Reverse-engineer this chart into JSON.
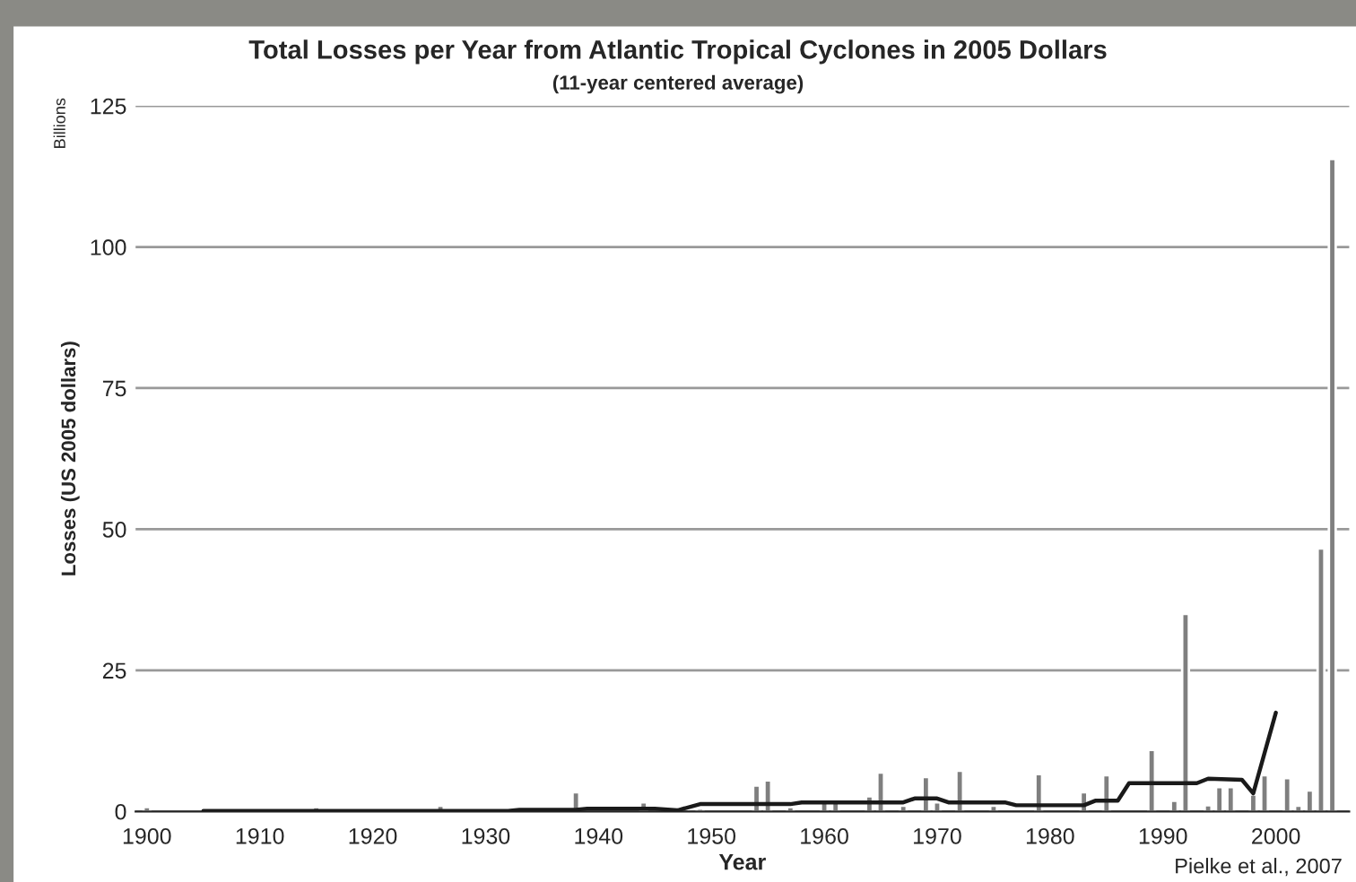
{
  "chart_data": {
    "type": "bar",
    "title": "Total Losses per Year from Atlantic Tropical Cyclones in 2005 Dollars",
    "subtitle": "(11-year centered average)",
    "xlabel": "Year",
    "ylabel": "Losses (US 2005 dollars)",
    "annotations": [
      "Billions",
      "Pielke et al., 2007"
    ],
    "series": [
      {
        "color": "#7f7f7f",
        "x": [
          1900,
          1915,
          1919,
          1926,
          1928,
          1938,
          1944,
          1949,
          1954,
          1955,
          1957,
          1960,
          1961,
          1964,
          1965,
          1967,
          1969,
          1970,
          1972,
          1975,
          1979,
          1983,
          1985,
          1989,
          1991,
          1992,
          1994,
          1995,
          1996,
          1998,
          1999,
          2001,
          2002,
          2003,
          2004,
          2005
        ],
        "values": [
          0.8,
          0.8,
          0.3,
          1.0,
          0.3,
          3.4,
          1.6,
          0.5,
          4.6,
          5.5,
          0.8,
          1.9,
          1.9,
          2.7,
          6.9,
          1.0,
          6.1,
          1.6,
          7.2,
          1.0,
          6.6,
          3.4,
          6.4,
          10.9,
          1.9,
          35,
          1.1,
          4.3,
          4.3,
          3.0,
          6.4,
          5.9,
          1.0,
          3.7,
          46.6,
          115.6
        ]
      },
      {
        "type": "line",
        "color": "#1a1a1a",
        "x": [
          1905,
          1932,
          1933,
          1938,
          1939,
          1945,
          1947,
          1949,
          1957,
          1958,
          1967,
          1968,
          1970,
          1971,
          1976,
          1977,
          1983,
          1984,
          1986,
          1987,
          1993,
          1994,
          1997,
          1998,
          2000
        ],
        "values": [
          0.1,
          0.1,
          0.3,
          0.3,
          0.5,
          0.5,
          0.2,
          1.3,
          1.3,
          1.6,
          1.6,
          2.3,
          2.3,
          1.6,
          1.6,
          1.1,
          1.1,
          1.9,
          1.9,
          5.0,
          5.0,
          5.8,
          5.6,
          3.2,
          17.5
        ]
      }
    ],
    "xlim": [
      1899,
      2006.5
    ],
    "xticks": [
      1900,
      1910,
      1920,
      1930,
      1940,
      1950,
      1960,
      1970,
      1980,
      1990,
      2000
    ],
    "ylim": [
      0,
      125
    ],
    "yticks": [
      0,
      25,
      50,
      75,
      100,
      125
    ],
    "grid": "y",
    "legend": false
  }
}
